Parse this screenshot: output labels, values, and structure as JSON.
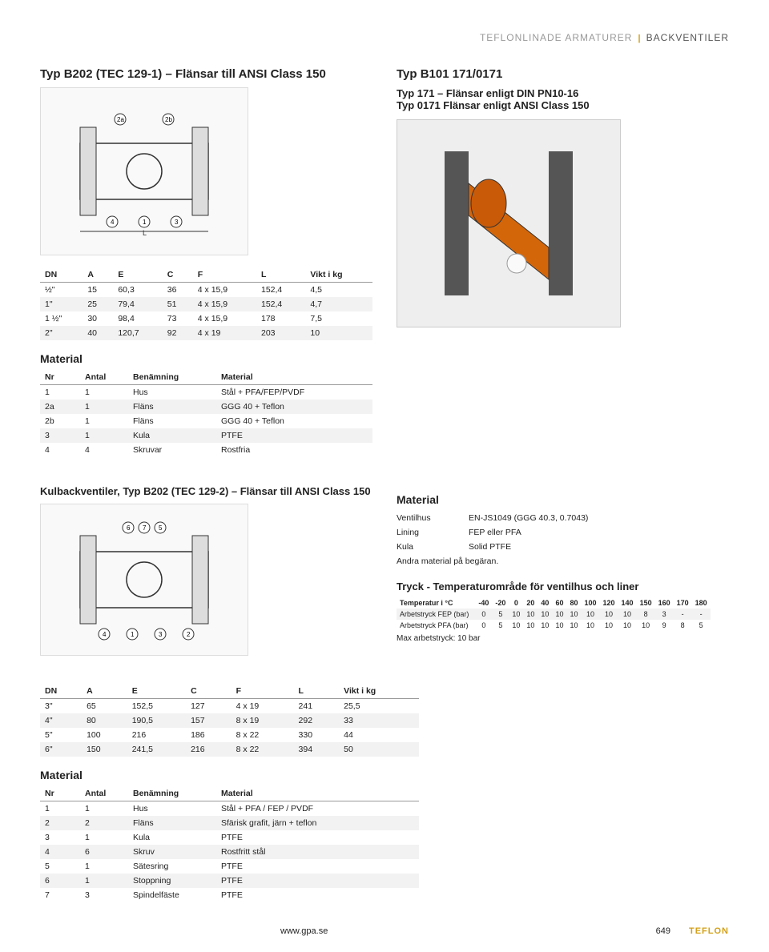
{
  "header": {
    "left": "TEFLONLINADE ARMATURER",
    "right": "BACKVENTILER"
  },
  "typB202_title": "Typ B202 (TEC 129-1) – Flänsar till ANSI Class 150",
  "typB101_title": "Typ B101 171/0171",
  "typB101_sub1": "Typ 171 – Flänsar enligt DIN PN10-16",
  "typB101_sub2": "Typ 0171 Flänsar enligt ANSI Class 150",
  "table1": {
    "headers": [
      "DN",
      "A",
      "E",
      "C",
      "F",
      "L",
      "Vikt i kg"
    ],
    "rows": [
      [
        "½\"",
        "15",
        "60,3",
        "36",
        "4 x 15,9",
        "152,4",
        "4,5"
      ],
      [
        "1\"",
        "25",
        "79,4",
        "51",
        "4 x 15,9",
        "152,4",
        "4,7"
      ],
      [
        "1 ½\"",
        "30",
        "98,4",
        "73",
        "4 x 15,9",
        "178",
        "7,5"
      ],
      [
        "2\"",
        "40",
        "120,7",
        "92",
        "4 x 19",
        "203",
        "10"
      ]
    ]
  },
  "material_heading": "Material",
  "mat_table1": {
    "headers": [
      "Nr",
      "Antal",
      "Benämning",
      "Material"
    ],
    "rows": [
      [
        "1",
        "1",
        "Hus",
        "Stål + PFA/FEP/PVDF"
      ],
      [
        "2a",
        "1",
        "Fläns",
        "GGG 40 + Teflon"
      ],
      [
        "2b",
        "1",
        "Fläns",
        "GGG 40 + Teflon"
      ],
      [
        "3",
        "1",
        "Kula",
        "PTFE"
      ],
      [
        "4",
        "4",
        "Skruvar",
        "Rostfria"
      ]
    ]
  },
  "kul_title": "Kulbackventiler, Typ B202 (TEC 129-2) – Flänsar till ANSI Class 150",
  "mat_list": {
    "rows": [
      [
        "Ventilhus",
        "EN-JS1049 (GGG 40.3, 0.7043)"
      ],
      [
        "Lining",
        "FEP eller PFA"
      ],
      [
        "Kula",
        "Solid PTFE"
      ]
    ],
    "note": "Andra material på begäran."
  },
  "temp_heading": "Tryck - Temperaturområde för ventilhus och liner",
  "temp_table": {
    "header_label": "Temperatur i °C",
    "temps": [
      "-40",
      "-20",
      "0",
      "20",
      "40",
      "60",
      "80",
      "100",
      "120",
      "140",
      "150",
      "160",
      "170",
      "180"
    ],
    "rows": [
      {
        "label": "Arbetstryck FEP (bar)",
        "vals": [
          "0",
          "5",
          "10",
          "10",
          "10",
          "10",
          "10",
          "10",
          "10",
          "10",
          "8",
          "3",
          "-",
          "-"
        ]
      },
      {
        "label": "Arbetstryck PFA (bar)",
        "vals": [
          "0",
          "5",
          "10",
          "10",
          "10",
          "10",
          "10",
          "10",
          "10",
          "10",
          "10",
          "9",
          "8",
          "5"
        ]
      }
    ],
    "max_note": "Max arbetstryck: 10 bar"
  },
  "table2": {
    "headers": [
      "DN",
      "A",
      "E",
      "C",
      "F",
      "L",
      "Vikt i kg"
    ],
    "rows": [
      [
        "3\"",
        "65",
        "152,5",
        "127",
        "4 x 19",
        "241",
        "25,5"
      ],
      [
        "4\"",
        "80",
        "190,5",
        "157",
        "8 x 19",
        "292",
        "33"
      ],
      [
        "5\"",
        "100",
        "216",
        "186",
        "8 x 22",
        "330",
        "44"
      ],
      [
        "6\"",
        "150",
        "241,5",
        "216",
        "8 x 22",
        "394",
        "50"
      ]
    ]
  },
  "mat_table2": {
    "headers": [
      "Nr",
      "Antal",
      "Benämning",
      "Material"
    ],
    "rows": [
      [
        "1",
        "1",
        "Hus",
        "Stål + PFA / FEP / PVDF"
      ],
      [
        "2",
        "2",
        "Fläns",
        "Sfärisk grafit, järn + teflon"
      ],
      [
        "3",
        "1",
        "Kula",
        "PTFE"
      ],
      [
        "4",
        "6",
        "Skruv",
        "Rostfritt stål"
      ],
      [
        "5",
        "1",
        "Sätesring",
        "PTFE"
      ],
      [
        "6",
        "1",
        "Stoppning",
        "PTFE"
      ],
      [
        "7",
        "3",
        "Spindelfäste",
        "PTFE"
      ]
    ]
  },
  "footer": {
    "url": "www.gpa.se",
    "page": "649",
    "brand": "TEFLON"
  },
  "colors": {
    "accent": "#d4a017",
    "alt_row": "#f2f2f2",
    "header_grey": "#999999"
  }
}
